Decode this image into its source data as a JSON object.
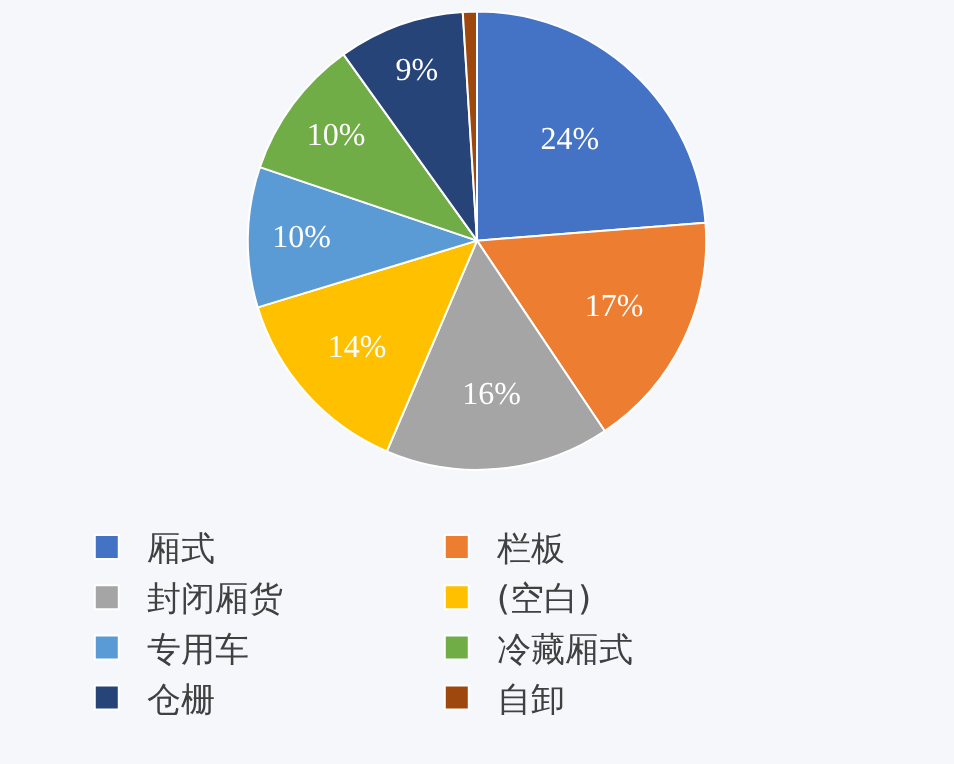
{
  "chart_data": {
    "type": "pie",
    "categories": [
      "厢式",
      "栏板",
      "封闭厢货",
      "(空白)",
      "专用车",
      "冷藏厢式",
      "仓栅",
      "自卸"
    ],
    "values": [
      24,
      17,
      16,
      14,
      10,
      10,
      9,
      1
    ],
    "value_labels": [
      "24%",
      "17%",
      "16%",
      "14%",
      "10%",
      "10%",
      "9%",
      null
    ],
    "colors": [
      "#4472c4",
      "#ed7d31",
      "#a5a5a5",
      "#ffc000",
      "#5b9bd5",
      "#70ad47",
      "#264478",
      "#9e480e"
    ],
    "legend": "bottom"
  }
}
